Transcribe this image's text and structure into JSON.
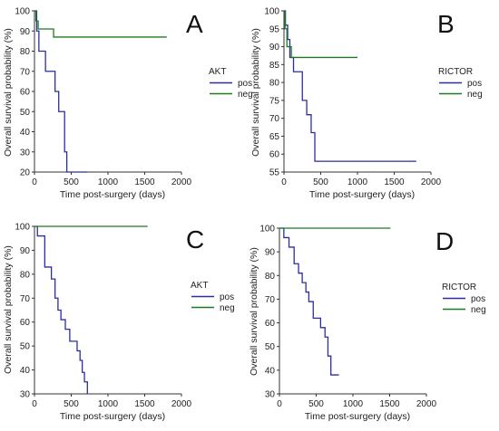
{
  "figure": {
    "chart_data": [
      {
        "type": "line",
        "panel_letter": "A",
        "xlabel": "Time post-surgery (days)",
        "ylabel": "Overall survival probability (%)",
        "xlim": [
          0,
          2000
        ],
        "ylim": [
          20,
          100
        ],
        "xticks": [
          0,
          500,
          1000,
          1500,
          2000
        ],
        "yticks": [
          20,
          30,
          40,
          50,
          60,
          70,
          80,
          90,
          100
        ],
        "grid": false,
        "step": true,
        "legend": {
          "title": "AKT",
          "placement": "right-middle"
        },
        "series": [
          {
            "name": "pos",
            "color": "#2b2f9e",
            "x": [
              0,
              30,
              60,
              150,
              280,
              330,
              410,
              440,
              720
            ],
            "y": [
              100,
              90,
              80,
              70,
              60,
              50,
              30,
              20,
              20
            ]
          },
          {
            "name": "neg",
            "color": "#1f7a1f",
            "x": [
              0,
              20,
              50,
              260,
              1800
            ],
            "y": [
              100,
              95,
              91,
              87,
              87
            ]
          }
        ]
      },
      {
        "type": "line",
        "panel_letter": "B",
        "xlabel": "Time post-surgery (days)",
        "ylabel": "Overall survival probability (%)",
        "xlim": [
          0,
          2000
        ],
        "ylim": [
          55,
          100
        ],
        "xticks": [
          0,
          500,
          1000,
          1500,
          2000
        ],
        "yticks": [
          55,
          60,
          65,
          70,
          75,
          80,
          85,
          90,
          95,
          100
        ],
        "grid": false,
        "step": true,
        "legend": {
          "title": "RICTOR",
          "placement": "right-middle"
        },
        "series": [
          {
            "name": "pos",
            "color": "#2b2f9e",
            "x": [
              0,
              20,
              50,
              80,
              130,
              250,
              310,
              370,
              420,
              1800
            ],
            "y": [
              100,
              96,
              92,
              87,
              83,
              75,
              71,
              66,
              58,
              58
            ]
          },
          {
            "name": "neg",
            "color": "#1f7a1f",
            "x": [
              0,
              15,
              40,
              100,
              1000
            ],
            "y": [
              100,
              95,
              90,
              87,
              87
            ]
          }
        ]
      },
      {
        "type": "line",
        "panel_letter": "C",
        "xlabel": "Time post-surgery (days)",
        "ylabel": "Overall survival probability (%)",
        "xlim": [
          0,
          2000
        ],
        "ylim": [
          30,
          100
        ],
        "xticks": [
          0,
          500,
          1000,
          1500,
          2000
        ],
        "yticks": [
          30,
          40,
          50,
          60,
          70,
          80,
          90,
          100
        ],
        "grid": false,
        "step": true,
        "legend": {
          "title": "AKT",
          "placement": "right-middle"
        },
        "series": [
          {
            "name": "pos",
            "color": "#2b2f9e",
            "x": [
              0,
              40,
              140,
              230,
              280,
              320,
              360,
              420,
              480,
              580,
              620,
              650,
              680,
              720
            ],
            "y": [
              100,
              96,
              83,
              78,
              70,
              65,
              61,
              57,
              52,
              48,
              44,
              39,
              35,
              30
            ]
          },
          {
            "name": "neg",
            "color": "#1f7a1f",
            "x": [
              0,
              1540
            ],
            "y": [
              100,
              100
            ]
          }
        ]
      },
      {
        "type": "line",
        "panel_letter": "D",
        "xlabel": "Time post-surgery (days)",
        "ylabel": "Overall survival probability (%)",
        "xlim": [
          0,
          2000
        ],
        "ylim": [
          30,
          100
        ],
        "xticks": [
          0,
          500,
          1000,
          1500,
          2000
        ],
        "yticks": [
          30,
          40,
          50,
          60,
          70,
          80,
          90,
          100
        ],
        "grid": false,
        "step": true,
        "legend": {
          "title": "RICTOR",
          "placement": "right-middle"
        },
        "series": [
          {
            "name": "pos",
            "color": "#2b2f9e",
            "x": [
              0,
              60,
              130,
              200,
              260,
              310,
              360,
              400,
              460,
              560,
              620,
              660,
              700,
              810
            ],
            "y": [
              100,
              96,
              92,
              85,
              81,
              77,
              73,
              69,
              62,
              58,
              54,
              46,
              38,
              38
            ]
          },
          {
            "name": "neg",
            "color": "#1f7a1f",
            "x": [
              0,
              1510
            ],
            "y": [
              100,
              100
            ]
          }
        ]
      }
    ]
  }
}
